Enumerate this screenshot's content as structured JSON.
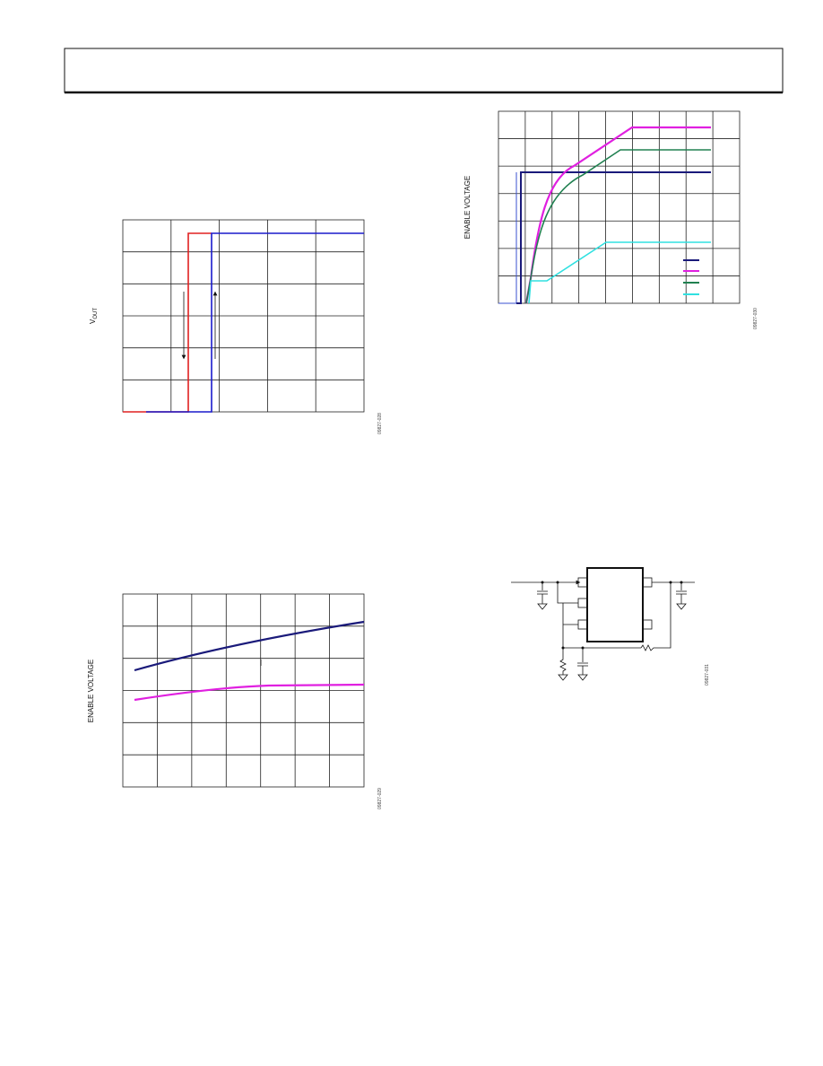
{
  "figures": [
    {
      "y_label": {
        "main": "V",
        "sub": "OUT"
      },
      "id": "09827-028"
    },
    {
      "y_label": "ENABLE VOLTAGE",
      "id": "09827-029"
    },
    {
      "y_label": "ENABLE VOLTAGE",
      "id": "09827-030"
    },
    {
      "id": "09827-031"
    }
  ]
}
